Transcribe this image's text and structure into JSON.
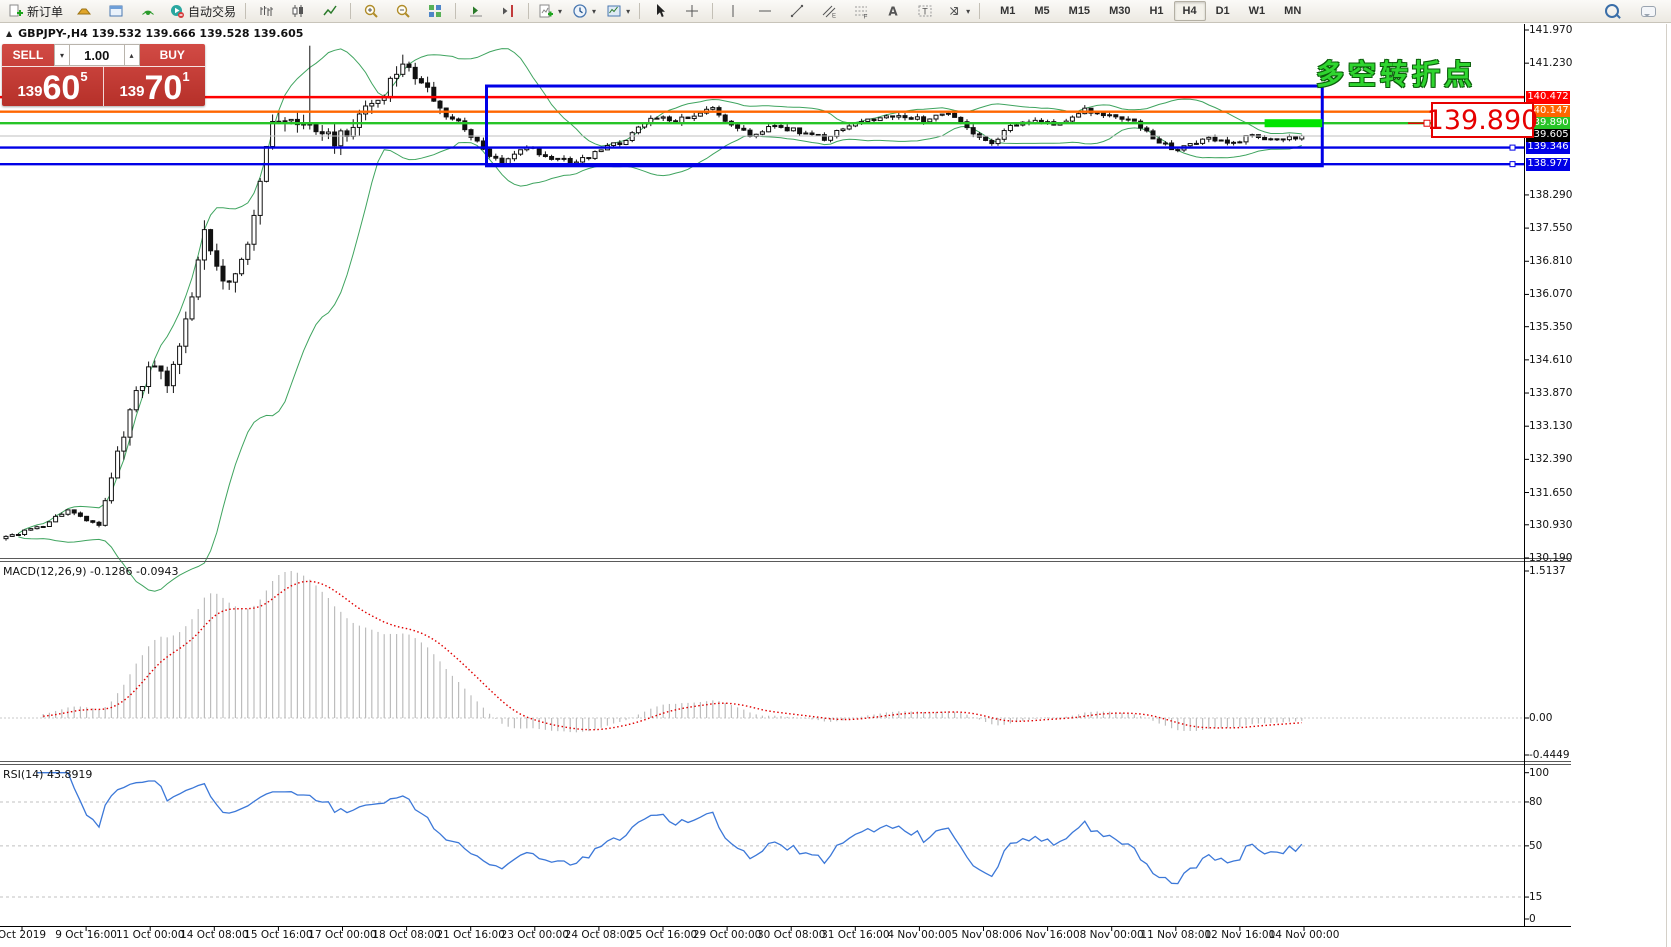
{
  "icons": {
    "caret_down": "▾",
    "caret_up": "▴",
    "collapse": "▲"
  },
  "toolbar": {
    "new_order_label": "新订单",
    "auto_trading_label": "自动交易",
    "items": [
      {
        "name": "new-order-button",
        "icon": "new-order",
        "label": "新订单"
      },
      {
        "name": "gold-symbol-button",
        "icon": "gold"
      },
      {
        "name": "market-watch-button",
        "icon": "window"
      },
      {
        "name": "signals-button",
        "icon": "signal"
      },
      {
        "name": "auto-trading-button",
        "icon": "autoplay",
        "label": "自动交易"
      },
      {
        "sep": true
      },
      {
        "name": "bar-chart-button",
        "icon": "bar-chart"
      },
      {
        "name": "candlestick-chart-button",
        "icon": "candle-chart"
      },
      {
        "name": "line-chart-button",
        "icon": "line-chart"
      },
      {
        "sep": true
      },
      {
        "name": "zoom-in-button",
        "icon": "zoom-in"
      },
      {
        "name": "zoom-out-button",
        "icon": "zoom-out"
      },
      {
        "name": "tile-windows-button",
        "icon": "tile"
      },
      {
        "sep": true
      },
      {
        "name": "auto-scroll-button",
        "icon": "auto-scroll"
      },
      {
        "name": "chart-shift-button",
        "icon": "chart-shift"
      },
      {
        "sep": true
      },
      {
        "name": "indicators-button",
        "icon": "indicators",
        "caret": true
      },
      {
        "name": "periods-button",
        "icon": "clock",
        "caret": true
      },
      {
        "name": "templates-button",
        "icon": "template",
        "caret": true
      },
      {
        "sep": true
      },
      {
        "name": "cursor-button",
        "icon": "cursor"
      },
      {
        "name": "crosshair-button",
        "icon": "crosshair"
      },
      {
        "sep": true
      },
      {
        "name": "vertical-line-button",
        "icon": "vline"
      },
      {
        "name": "horizontal-line-button",
        "icon": "hline"
      },
      {
        "name": "trendline-button",
        "icon": "tline"
      },
      {
        "name": "equidistant-channel-button",
        "icon": "channel"
      },
      {
        "name": "fibonacci-button",
        "icon": "fibo"
      },
      {
        "name": "text-button",
        "icon": "text-a"
      },
      {
        "name": "text-label-button",
        "icon": "text-t"
      },
      {
        "name": "arrows-button",
        "icon": "arrows",
        "caret": true
      },
      {
        "sep": true
      }
    ],
    "timeframes": [
      "M1",
      "M5",
      "M15",
      "M30",
      "H1",
      "H4",
      "D1",
      "W1",
      "MN"
    ],
    "active_timeframe": "H4"
  },
  "chart_header": {
    "title": "GBPJPY-,H4  139.532 139.666 139.528 139.605"
  },
  "trade_panel": {
    "sell_label": "SELL",
    "buy_label": "BUY",
    "volume": "1.00",
    "sell_price_prefix": "139",
    "sell_price_big": "60",
    "sell_price_sup": "5",
    "buy_price_prefix": "139",
    "buy_price_big": "70",
    "buy_price_sup": "1"
  },
  "annotations": {
    "turning_point": "多空转折点",
    "price_callout": "139.890"
  },
  "price_axis": {
    "ticks": [
      {
        "v": 141.97,
        "t": "141.970"
      },
      {
        "v": 141.23,
        "t": "141.230"
      },
      {
        "v": 138.29,
        "t": "138.290"
      },
      {
        "v": 137.55,
        "t": "137.550"
      },
      {
        "v": 136.81,
        "t": "136.810"
      },
      {
        "v": 136.07,
        "t": "136.070"
      },
      {
        "v": 135.35,
        "t": "135.350"
      },
      {
        "v": 134.61,
        "t": "134.610"
      },
      {
        "v": 133.87,
        "t": "133.870"
      },
      {
        "v": 133.13,
        "t": "133.130"
      },
      {
        "v": 132.39,
        "t": "132.390"
      },
      {
        "v": 131.65,
        "t": "131.650"
      },
      {
        "v": 130.93,
        "t": "130.930"
      },
      {
        "v": 130.19,
        "t": "130.190"
      }
    ]
  },
  "levels": [
    {
      "price": 140.472,
      "label": "140.472",
      "color": "#FF0000",
      "handle": false
    },
    {
      "price": 140.147,
      "label": "140.147",
      "color": "#FF6600",
      "handle": true
    },
    {
      "price": 139.89,
      "label": "139.890",
      "color": "#27C427",
      "handle": true
    },
    {
      "price": 139.346,
      "label": "139.346",
      "color": "#0000E6",
      "handle": true
    },
    {
      "price": 138.977,
      "label": "138.977",
      "color": "#0000E6",
      "handle": true
    }
  ],
  "current_price": {
    "value": 139.605,
    "label": "139.605",
    "line_color": "#BFBFBF",
    "label_bg": "#000000"
  },
  "macd_panel": {
    "label": "MACD(12,26,9) -0.1286 -0.0943",
    "scale_labels": [
      {
        "v": 1.5137,
        "t": "1.5137"
      },
      {
        "v": 0,
        "t": "0.00"
      },
      {
        "v": -0.4449,
        "t": "-0.4449"
      }
    ]
  },
  "rsi_panel": {
    "label": "RSI(14) 43.8919",
    "scale_labels": [
      {
        "v": 100,
        "t": "100"
      },
      {
        "v": 80,
        "t": "80"
      },
      {
        "v": 50,
        "t": "50"
      },
      {
        "v": 15,
        "t": "15"
      },
      {
        "v": 0,
        "t": "0"
      }
    ],
    "dashed_levels": [
      80,
      50,
      15
    ]
  },
  "time_axis": [
    "Oct 2019",
    "9 Oct 16:00",
    "11 Oct 00:00",
    "14 Oct 08:00",
    "15 Oct 16:00",
    "17 Oct 00:00",
    "18 Oct 08:00",
    "21 Oct 16:00",
    "23 Oct 00:00",
    "24 Oct 08:00",
    "25 Oct 16:00",
    "29 Oct 00:00",
    "30 Oct 08:00",
    "31 Oct 16:00",
    "4 Nov 00:00",
    "5 Nov 08:00",
    "6 Nov 16:00",
    "8 Nov 00:00",
    "11 Nov 08:00",
    "12 Nov 16:00",
    "14 Nov 00:00"
  ],
  "chart_data": {
    "type": "candlestick",
    "symbol": "GBPJPY-",
    "timeframe": "H4",
    "last_bar_ohlc": {
      "open": 139.532,
      "high": 139.666,
      "low": 139.528,
      "close": 139.605
    },
    "visible_price_range": [
      130.19,
      141.97
    ],
    "visible_time_range": [
      "Oct 2019",
      "14 Nov 00:00"
    ],
    "bars": 210,
    "close_anchors": [
      [
        0,
        130.65
      ],
      [
        6,
        130.9
      ],
      [
        10,
        131.3
      ],
      [
        13,
        131.02
      ],
      [
        15,
        130.95
      ],
      [
        18,
        132.6
      ],
      [
        21,
        133.9
      ],
      [
        23,
        134.45
      ],
      [
        26,
        134.15
      ],
      [
        29,
        135.5
      ],
      [
        32,
        137.35
      ],
      [
        35,
        136.3
      ],
      [
        38,
        136.9
      ],
      [
        40,
        137.8
      ],
      [
        43,
        139.9
      ],
      [
        46,
        140.1
      ],
      [
        49,
        139.8
      ],
      [
        53,
        139.5
      ],
      [
        57,
        140.0
      ],
      [
        61,
        140.6
      ],
      [
        64,
        141.15
      ],
      [
        67,
        140.85
      ],
      [
        70,
        140.15
      ],
      [
        73,
        139.9
      ],
      [
        77,
        139.3
      ],
      [
        80,
        138.95
      ],
      [
        84,
        139.35
      ],
      [
        88,
        139.1
      ],
      [
        92,
        139.0
      ],
      [
        96,
        139.3
      ],
      [
        100,
        139.5
      ],
      [
        104,
        140.0
      ],
      [
        108,
        139.95
      ],
      [
        114,
        140.2
      ],
      [
        118,
        139.75
      ],
      [
        121,
        139.6
      ],
      [
        124,
        139.85
      ],
      [
        128,
        139.7
      ],
      [
        132,
        139.55
      ],
      [
        136,
        139.8
      ],
      [
        140,
        140.0
      ],
      [
        144,
        140.1
      ],
      [
        148,
        139.95
      ],
      [
        152,
        140.15
      ],
      [
        156,
        139.7
      ],
      [
        159,
        139.45
      ],
      [
        162,
        139.8
      ],
      [
        166,
        139.95
      ],
      [
        170,
        139.85
      ],
      [
        174,
        140.2
      ],
      [
        178,
        140.05
      ],
      [
        182,
        139.9
      ],
      [
        186,
        139.45
      ],
      [
        189,
        139.3
      ],
      [
        193,
        139.55
      ],
      [
        197,
        139.45
      ],
      [
        201,
        139.6
      ],
      [
        205,
        139.5
      ],
      [
        209,
        139.605
      ]
    ],
    "volatility_anchors": [
      [
        0,
        0.09
      ],
      [
        15,
        0.1
      ],
      [
        18,
        0.42
      ],
      [
        43,
        0.45
      ],
      [
        64,
        0.35
      ],
      [
        70,
        0.25
      ],
      [
        75,
        0.14
      ],
      [
        209,
        0.13
      ]
    ],
    "wick_overrides": [
      {
        "bar": 49,
        "high": 141.62
      },
      {
        "bar": 64,
        "high": 141.42
      }
    ],
    "indicators": [
      {
        "name": "Bollinger Bands",
        "color": "#3FA45F"
      },
      {
        "name": "MACD",
        "params": "12,26,9",
        "values": [
          -0.1286,
          -0.0943
        ],
        "histogram_color": "#C0C0C0",
        "signal_color": "#E00000"
      },
      {
        "name": "RSI",
        "params": "14",
        "value": 43.8919,
        "color": "#3C78D8"
      }
    ],
    "box_annotation": {
      "bar_start": 77.5,
      "bar_end": 212.3,
      "price_top": 140.72,
      "price_bottom": 138.94,
      "color": "#0000E6"
    },
    "highlight_segment": {
      "bar_start": 203,
      "bar_end": 212.3,
      "price": 139.89,
      "color": "#00E400"
    }
  }
}
